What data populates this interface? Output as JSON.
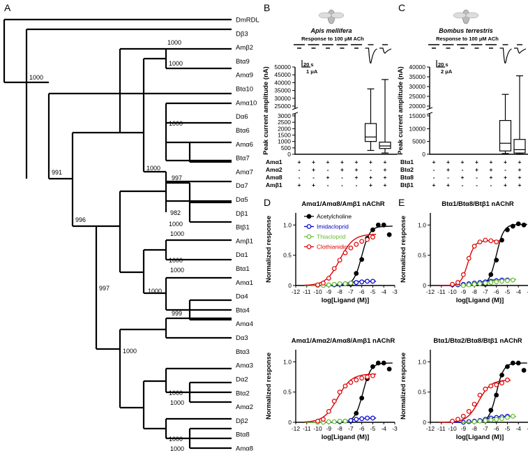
{
  "panel_letters": {
    "a": "A",
    "b": "B",
    "c": "C",
    "d": "D",
    "e": "E"
  },
  "chart_data": [
    {
      "type": "tree",
      "panel": "A",
      "leaves": [
        "DmRDL",
        "Dβ3",
        "Amβ2",
        "Btα9",
        "Amα9",
        "Btα10",
        "Amα10",
        "Dα6",
        "Btα6",
        "Amα6",
        "Btα7",
        "Amα7",
        "Dα7",
        "Dα5",
        "Dβ1",
        "Btβ1",
        "Amβ1",
        "Dα1",
        "Btα1",
        "Amα1",
        "Dα4",
        "Btα4",
        "Amα4",
        "Dα3",
        "Btα3",
        "Amα3",
        "Dα2",
        "Btα2",
        "Amα2",
        "Dβ2",
        "Btα8",
        "Amα8"
      ],
      "bootstrap_labels": [
        "1000",
        "1000",
        "1000",
        "991",
        "1000",
        "1000",
        "997",
        "982",
        "996",
        "1000",
        "1000",
        "997",
        "1000",
        "1000",
        "1000",
        "999",
        "1000",
        "1000",
        "1000",
        "1000",
        "1000"
      ]
    },
    {
      "type": "box",
      "panel": "B",
      "species": "Apis mellifera",
      "response_label": "Response to 100 μM ACh",
      "scale_time": "20 s",
      "scale_current": "1 μA",
      "ylabel": "Peak current amplitude (nA)",
      "yticks_upper": [
        "50000",
        "45000",
        "40000",
        "35000",
        "30000",
        "25000"
      ],
      "yticks_lower": [
        "3000",
        "2500",
        "2000",
        "1500",
        "1000",
        "500",
        "0"
      ],
      "row_labels": [
        "Amα1",
        "Amα2",
        "Amα8",
        "Amβ1"
      ],
      "table": [
        [
          "+",
          "+",
          "+",
          "+",
          "+",
          "+",
          "+"
        ],
        [
          "-",
          "+",
          "-",
          "+",
          "+",
          "-",
          "+"
        ],
        [
          "-",
          "-",
          "+",
          "-",
          "+",
          "+",
          "+"
        ],
        [
          "+",
          "+",
          "-",
          "-",
          "-",
          "+",
          "+"
        ]
      ],
      "boxes": [
        {
          "column": 6,
          "min": 300,
          "q1": 1000,
          "median": 1350,
          "q3": 2400,
          "max": 36000
        },
        {
          "column": 7,
          "min": 100,
          "q1": 450,
          "median": 650,
          "q3": 950,
          "max": 42000
        }
      ]
    },
    {
      "type": "box",
      "panel": "C",
      "species": "Bombus terrestris",
      "response_label": "Response to 100 μM ACh",
      "scale_time": "20 s",
      "scale_current": "2 μA",
      "ylabel": "Peak current amplitude (nA)",
      "yticks_upper": [
        "40000",
        "35000",
        "30000",
        "25000",
        "20000"
      ],
      "yticks_lower": [
        "15000",
        "10000",
        "5000",
        "0"
      ],
      "row_labels": [
        "Btα1",
        "Btα2",
        "Btα8",
        "Btβ1"
      ],
      "table": [
        [
          "+",
          "+",
          "+",
          "+",
          "+",
          "+",
          "+"
        ],
        [
          "-",
          "+",
          "-",
          "+",
          "+",
          "-",
          "+"
        ],
        [
          "-",
          "-",
          "+",
          "-",
          "+",
          "+",
          "+"
        ],
        [
          "+",
          "+",
          "-",
          "-",
          "-",
          "+",
          "+"
        ]
      ],
      "boxes": [
        {
          "column": 6,
          "min": 300,
          "q1": 1300,
          "median": 4300,
          "q3": 13200,
          "max": 26000
        },
        {
          "column": 7,
          "min": 100,
          "q1": 500,
          "median": 1800,
          "q3": 5800,
          "max": 35500
        }
      ]
    },
    {
      "type": "scatter",
      "panel": "D",
      "title": "Amα1/Amα8/Amβ1 nAChR",
      "xlabel": "log[Ligand (M)]",
      "ylabel": "Normalized response",
      "xlim": [
        -12,
        -3
      ],
      "ylim": [
        0,
        1.2
      ],
      "series": [
        {
          "name": "Acetylcholine",
          "color": "#000000",
          "x": [
            -7,
            -6.5,
            -6,
            -5.5,
            -5,
            -4.5,
            -4,
            -3.5
          ],
          "y": [
            0.02,
            0.2,
            0.43,
            0.78,
            0.92,
            1.0,
            1.0,
            0.84
          ],
          "fit": {
            "ec50": -6.0,
            "hill": 1.2,
            "top": 0.98
          }
        },
        {
          "name": "Imidacloprid",
          "color": "#0000cc",
          "x": [
            -9,
            -8.5,
            -8,
            -7.5,
            -7,
            -6.5,
            -6,
            -5.5,
            -5
          ],
          "y": [
            0.01,
            0.01,
            0.02,
            0.03,
            0.04,
            0.05,
            0.06,
            0.07,
            0.07
          ],
          "fit": {
            "ec50": -7.5,
            "hill": 1.0,
            "top": 0.07
          }
        },
        {
          "name": "Thiacloprid",
          "color": "#66bb33",
          "x": [
            -10,
            -9.5,
            -9,
            -8.5,
            -8,
            -7.5,
            -7
          ],
          "y": [
            0.0,
            0.0,
            0.01,
            0.02,
            0.03,
            0.03,
            0.04
          ],
          "fit": {
            "ec50": -8.5,
            "hill": 1.0,
            "top": 0.04
          }
        },
        {
          "name": "Clothianidin",
          "color": "#dd0000",
          "x": [
            -10,
            -9.5,
            -9,
            -8.5,
            -8,
            -7.5,
            -7,
            -6.5,
            -6,
            -5.5,
            -5
          ],
          "y": [
            0.01,
            0.04,
            0.12,
            0.28,
            0.42,
            0.54,
            0.62,
            0.68,
            0.73,
            0.76,
            0.8
          ],
          "fit": {
            "ec50": -8.0,
            "hill": 0.7,
            "top": 0.85
          }
        }
      ]
    },
    {
      "type": "scatter",
      "panel": "E",
      "title": "Btα1/Btα8/Btβ1 nAChR",
      "xlabel": "log[Ligand (M)]",
      "ylabel": "Normalized response",
      "xlim": [
        -12,
        -3
      ],
      "ylim": [
        0,
        1.2
      ],
      "series": [
        {
          "name": "Acetylcholine",
          "color": "#000000",
          "x": [
            -7,
            -6.5,
            -6,
            -5.5,
            -5,
            -4.5,
            -4,
            -3.5
          ],
          "y": [
            0.02,
            0.18,
            0.42,
            0.75,
            0.92,
            0.98,
            1.02,
            1.0
          ],
          "fit": {
            "ec50": -6.0,
            "hill": 1.3,
            "top": 1.01
          }
        },
        {
          "name": "Imidacloprid",
          "color": "#0000cc",
          "x": [
            -10,
            -9.5,
            -9,
            -8.5,
            -8,
            -7.5,
            -7,
            -6.5,
            -6,
            -5.5,
            -5
          ],
          "y": [
            0.01,
            0.01,
            0.02,
            0.03,
            0.04,
            0.05,
            0.06,
            0.07,
            0.08,
            0.09,
            0.09
          ],
          "fit": {
            "ec50": -7.5,
            "hill": 0.8,
            "top": 0.1
          }
        },
        {
          "name": "Thiacloprid",
          "color": "#66bb33",
          "x": [
            -9,
            -8.5,
            -8,
            -7.5,
            -7,
            -6.5,
            -6,
            -5.5,
            -5,
            -4.5
          ],
          "y": [
            0.0,
            0.01,
            0.02,
            0.03,
            0.04,
            0.05,
            0.06,
            0.07,
            0.08,
            0.09
          ],
          "fit": {
            "ec50": -7.0,
            "hill": 0.8,
            "top": 0.1
          }
        },
        {
          "name": "Clothianidin",
          "color": "#dd0000",
          "x": [
            -10,
            -9.5,
            -9,
            -8.5,
            -8,
            -7.5,
            -7,
            -6.5,
            -6
          ],
          "y": [
            0.02,
            0.05,
            0.18,
            0.45,
            0.65,
            0.72,
            0.75,
            0.74,
            0.72
          ],
          "fit": {
            "ec50": -8.6,
            "hill": 1.4,
            "top": 0.74
          }
        }
      ]
    },
    {
      "type": "scatter",
      "panel": "D-lower",
      "title": "Amα1/Amα2/Amα8/Amβ1 nAChR",
      "xlabel": "log[Ligand (M)]",
      "ylabel": "Normalized response",
      "xlim": [
        -12,
        -3
      ],
      "ylim": [
        0,
        1.2
      ],
      "series": [
        {
          "name": "Acetylcholine",
          "color": "#000000",
          "x": [
            -7,
            -6.5,
            -6,
            -5.5,
            -5,
            -4.5,
            -4,
            -3.5
          ],
          "y": [
            0.02,
            0.15,
            0.4,
            0.72,
            0.92,
            0.98,
            0.98,
            0.88
          ],
          "fit": {
            "ec50": -5.9,
            "hill": 1.2,
            "top": 0.98
          }
        },
        {
          "name": "Imidacloprid",
          "color": "#0000cc",
          "x": [
            -8,
            -7.5,
            -7,
            -6.5,
            -6,
            -5.5,
            -5
          ],
          "y": [
            0.01,
            0.02,
            0.03,
            0.05,
            0.06,
            0.07,
            0.07
          ],
          "fit": {
            "ec50": -7.0,
            "hill": 1.0,
            "top": 0.07
          }
        },
        {
          "name": "Thiacloprid",
          "color": "#66bb33",
          "x": [
            -10,
            -9.5,
            -9,
            -8.5,
            -8,
            -7.5
          ],
          "y": [
            0.0,
            0.0,
            0.01,
            0.01,
            0.02,
            0.02
          ],
          "fit": {
            "ec50": -8.5,
            "hill": 1.0,
            "top": 0.02
          }
        },
        {
          "name": "Clothianidin",
          "color": "#dd0000",
          "x": [
            -10,
            -9.5,
            -9,
            -8.5,
            -8,
            -7.5,
            -7,
            -6.5,
            -6,
            -5.5,
            -5
          ],
          "y": [
            0.02,
            0.05,
            0.18,
            0.35,
            0.5,
            0.6,
            0.66,
            0.7,
            0.73,
            0.75,
            0.77
          ],
          "fit": {
            "ec50": -8.2,
            "hill": 0.7,
            "top": 0.8
          }
        }
      ]
    },
    {
      "type": "scatter",
      "panel": "E-lower",
      "title": "Btα1/Btα2/Btα8/Btβ1 nAChR",
      "xlabel": "log[Ligand (M)]",
      "ylabel": "Normalized response",
      "xlim": [
        -12,
        -3
      ],
      "ylim": [
        0,
        1.2
      ],
      "series": [
        {
          "name": "Acetylcholine",
          "color": "#000000",
          "x": [
            -7,
            -6.5,
            -6,
            -5.5,
            -5,
            -4.5,
            -4,
            -3.5
          ],
          "y": [
            0.03,
            0.2,
            0.45,
            0.78,
            0.92,
            0.98,
            0.98,
            0.86
          ],
          "fit": {
            "ec50": -6.0,
            "hill": 1.3,
            "top": 0.98
          }
        },
        {
          "name": "Imidacloprid",
          "color": "#0000cc",
          "x": [
            -9,
            -8.5,
            -8,
            -7.5,
            -7,
            -6.5,
            -6,
            -5.5,
            -5
          ],
          "y": [
            0.0,
            0.01,
            0.02,
            0.03,
            0.05,
            0.07,
            0.08,
            0.09,
            0.1
          ],
          "fit": {
            "ec50": -7.0,
            "hill": 0.8,
            "top": 0.1
          }
        },
        {
          "name": "Thiacloprid",
          "color": "#66bb33",
          "x": [
            -8,
            -7.5,
            -7,
            -6.5,
            -6,
            -5.5,
            -5,
            -4.5
          ],
          "y": [
            0.01,
            0.02,
            0.03,
            0.04,
            0.05,
            0.06,
            0.08,
            0.1
          ],
          "fit": {
            "ec50": -6.0,
            "hill": 0.8,
            "top": 0.1
          }
        },
        {
          "name": "Clothianidin",
          "color": "#dd0000",
          "x": [
            -10,
            -9.5,
            -9,
            -8.5,
            -8,
            -7.5,
            -7,
            -6.5,
            -6,
            -5.5,
            -5
          ],
          "y": [
            0.02,
            0.05,
            0.1,
            0.18,
            0.3,
            0.45,
            0.55,
            0.6,
            0.62,
            0.65,
            0.7
          ],
          "fit": {
            "ec50": -7.6,
            "hill": 0.8,
            "top": 0.7
          }
        }
      ]
    }
  ]
}
